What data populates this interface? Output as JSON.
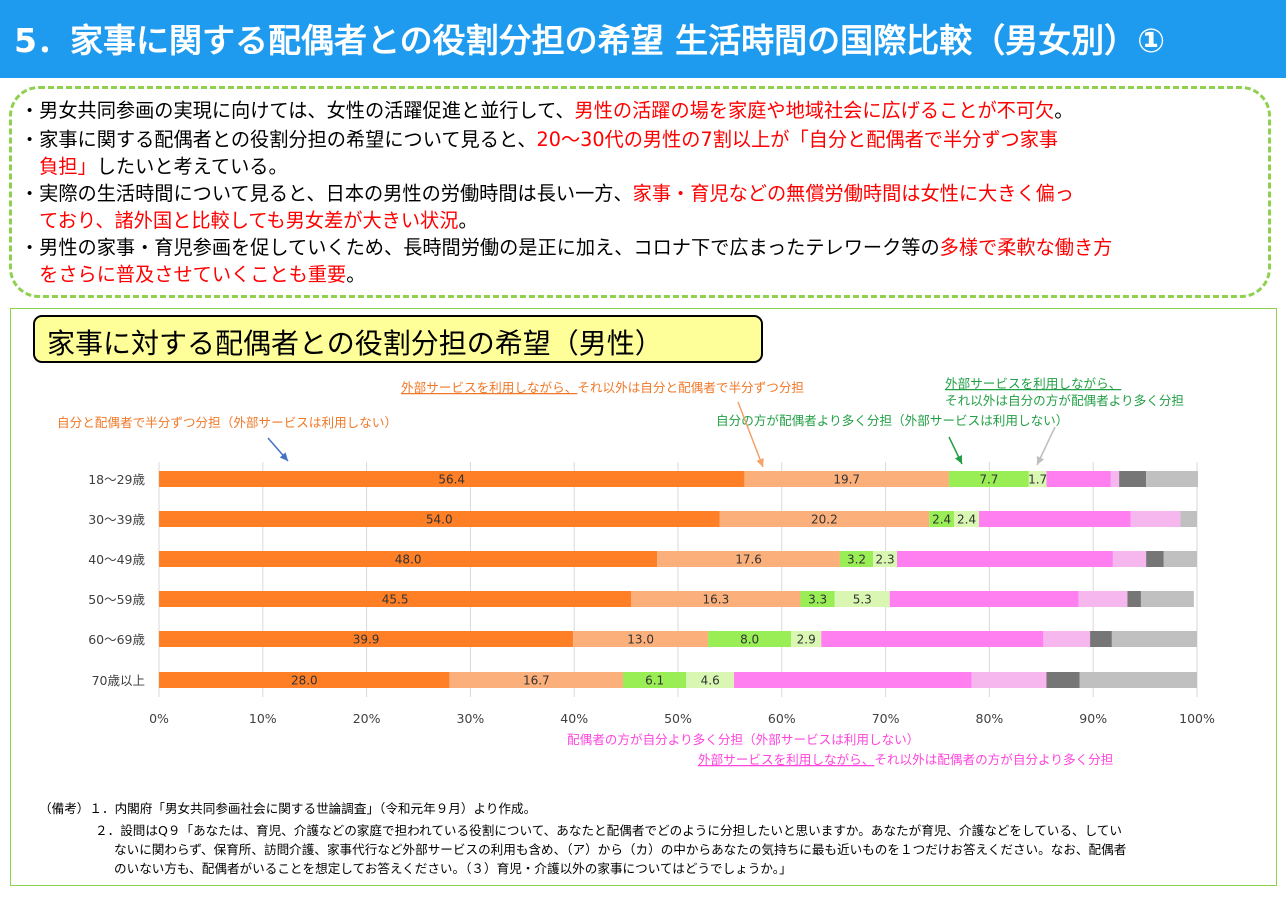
{
  "header": {
    "title": "5．家事に関する配偶者との役割分担の希望 生活時間の国際比較（男女別）①"
  },
  "summary": {
    "bullets": [
      {
        "lines": [
          [
            {
              "t": "・男女共同参画の実現に向けては、女性の活躍促進と並行して、",
              "red": false
            },
            {
              "t": "男性の活躍の場を家庭や地域社会に広げることが不可欠",
              "red": true
            },
            {
              "t": "。",
              "red": false
            }
          ]
        ]
      },
      {
        "lines": [
          [
            {
              "t": "・家事に関する配偶者との役割分担の希望について見ると、",
              "red": false
            },
            {
              "t": "20～30代の男性の7割以上が「自分と配偶者で半分ずつ家事",
              "red": true
            }
          ],
          [
            {
              "t": "　負担」",
              "red": true
            },
            {
              "t": "したいと考えている。",
              "red": false
            }
          ]
        ]
      },
      {
        "lines": [
          [
            {
              "t": "・実際の生活時間について見ると、日本の男性の労働時間は長い一方、",
              "red": false
            },
            {
              "t": "家事・育児などの無償労働時間は女性に大きく偏っ",
              "red": true
            }
          ],
          [
            {
              "t": "　ており、諸外国と比較しても男女差が大きい状況",
              "red": true
            },
            {
              "t": "。",
              "red": false
            }
          ]
        ]
      },
      {
        "lines": [
          [
            {
              "t": "・男性の家事・育児参画を促していくため、長時間労働の是正に加え、コロナ下で広まったテレワーク等の",
              "red": false
            },
            {
              "t": "多様で柔軟な働き方",
              "red": true
            }
          ],
          [
            {
              "t": "　をさらに普及させていくことも重要",
              "red": true
            },
            {
              "t": "。",
              "red": false
            }
          ]
        ]
      }
    ]
  },
  "chart_title": "家事に対する配偶者との役割分担の希望（男性）",
  "chart_data": {
    "type": "bar",
    "orientation": "horizontal",
    "stacked": true,
    "categories": [
      "18～29歳",
      "30～39歳",
      "40～49歳",
      "50～59歳",
      "60～69歳",
      "70歳以上"
    ],
    "series": [
      {
        "name": "自分と配偶者で半分ずつ分担（外部サービスは利用しない）",
        "color": "#ff7f27",
        "values": [
          56.4,
          54.0,
          48.0,
          45.5,
          39.9,
          28.0
        ],
        "labels": [
          "56.4",
          "54.0",
          "48.0",
          "45.5",
          "39.9",
          "28.0"
        ]
      },
      {
        "name": "外部サービスを利用しながら、それ以外は自分と配偶者で半分ずつ分担",
        "color": "#fbb07c",
        "values": [
          19.7,
          20.2,
          17.6,
          16.3,
          13.0,
          16.7
        ],
        "labels": [
          "19.7",
          "20.2",
          "17.6",
          "16.3",
          "13.0",
          "16.7"
        ]
      },
      {
        "name": "自分の方が配偶者より多く分担（外部サービスは利用しない）",
        "color": "#99ee55",
        "values": [
          7.7,
          2.4,
          3.2,
          3.3,
          8.0,
          6.1
        ],
        "labels": [
          "7.7",
          "2.4",
          "3.2",
          "3.3",
          "8.0",
          "6.1"
        ]
      },
      {
        "name": "外部サービスを利用しながら、それ以外は自分の方が配偶者より多く分担",
        "color": "#d9f7b3",
        "values": [
          1.7,
          2.4,
          2.3,
          5.3,
          2.9,
          4.6
        ],
        "labels": [
          "1.7",
          "2.4",
          "2.3",
          "5.3",
          "2.9",
          "4.6"
        ]
      },
      {
        "name": "配偶者の方が自分より多く分担（外部サービスは利用しない）",
        "color": "#ff7ff0",
        "values": [
          6.2,
          14.6,
          20.8,
          18.2,
          21.4,
          22.9
        ],
        "labels": [
          "",
          "",
          "",
          "",
          "",
          ""
        ]
      },
      {
        "name": "外部サービスを利用しながら、それ以外は配偶者の方が自分より多く分担",
        "color": "#f6b6ee",
        "values": [
          0.8,
          4.8,
          3.2,
          4.7,
          4.5,
          7.2
        ],
        "labels": [
          "",
          "",
          "",
          "",
          "",
          ""
        ]
      },
      {
        "name": "",
        "color": "#767676",
        "values": [
          2.6,
          0,
          1.7,
          1.3,
          2.1,
          3.2
        ],
        "labels": [
          "",
          "",
          "",
          "",
          "",
          ""
        ]
      },
      {
        "name": "",
        "color": "#c0c0c0",
        "values": [
          5.0,
          1.6,
          3.2,
          5.1,
          8.2,
          11.3
        ],
        "labels": [
          "",
          "",
          "",
          "",
          "",
          ""
        ]
      }
    ],
    "xlim": [
      0,
      100
    ],
    "xticks": [
      "0%",
      "10%",
      "20%",
      "30%",
      "40%",
      "50%",
      "60%",
      "70%",
      "80%",
      "90%",
      "100%"
    ],
    "grid": true,
    "annotations": [
      {
        "parts": [
          {
            "t": "外部サービスを利用しながら、",
            "u": true
          },
          {
            "t": "それ以外は自分と配偶者で半分ずつ分担",
            "u": false
          }
        ],
        "color": "#f07828"
      },
      {
        "parts": [
          {
            "t": "自分と配偶者で半分ずつ分担（外部サービスは利用しない）",
            "u": false
          }
        ],
        "color": "#f07828"
      },
      {
        "parts": [
          {
            "t": "外部サービスを利用しながら、",
            "u": true
          }
        ],
        "color": "#22a045"
      },
      {
        "parts": [
          {
            "t": "それ以外は自分の方が配偶者より多く分担",
            "u": false
          }
        ],
        "color": "#22a045"
      },
      {
        "parts": [
          {
            "t": "自分の方が配偶者より多く分担（外部サービスは利用しない）",
            "u": false
          }
        ],
        "color": "#22a045"
      },
      {
        "parts": [
          {
            "t": "配偶者の方が自分より多く分担（外部サービスは利用しない）",
            "u": false
          }
        ],
        "color": "#ff44dd"
      },
      {
        "parts": [
          {
            "t": "外部サービスを利用しながら、",
            "u": true
          },
          {
            "t": "それ以外は配偶者の方が自分より多く分担",
            "u": false
          }
        ],
        "color": "#ff44dd"
      }
    ]
  },
  "notes": {
    "lines": [
      "（備考）１．内閣府「男女共同参画社会に関する世論調査」（令和元年９月）より作成。",
      "２．設問はQ９「あなたは、育児、介護などの家庭で担われている役割について、あなたと配偶者でどのように分担したいと思いますか。あなたが育児、介護などをしている、してい",
      "ないに関わらず、保育所、訪問介護、家事代行など外部サービスの利用も含め、（ア）から（カ）の中からあなたの気持ちに最も近いものを１つだけお答えください。なお、配偶者",
      "のいない方も、配偶者がいることを想定してお答えください。（３）育児・介護以外の家事についてはどうでしょうか。」"
    ]
  }
}
